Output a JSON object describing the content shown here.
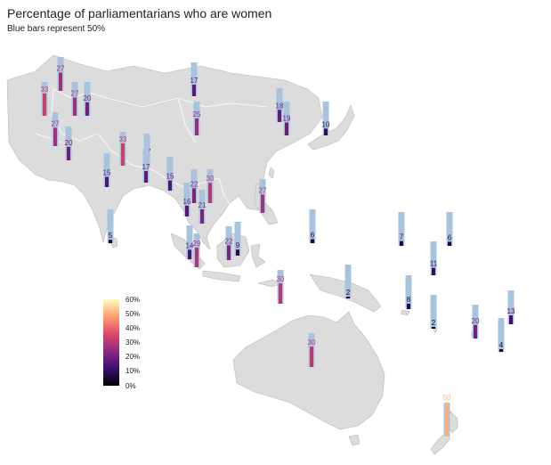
{
  "title": "Percentage of parliamentarians who are women",
  "subtitle": "Blue bars represent 50%",
  "reference_value": 50,
  "colors": {
    "reference_bar": "#a8c3dd",
    "land": "#dcdcdc",
    "scale": [
      "#000004",
      "#3b0f70",
      "#8c2981",
      "#de4968",
      "#fe9f6d",
      "#fcfdbf"
    ]
  },
  "legend": {
    "ticks": [
      "60%",
      "50%",
      "40%",
      "30%",
      "20%",
      "10%",
      "0%"
    ],
    "max": 60
  },
  "chart_data": {
    "type": "bar",
    "title": "Percentage of parliamentarians who are women",
    "subtitle": "Blue bars represent 50%",
    "values": [
      27,
      33,
      27,
      20,
      17,
      27,
      20,
      25,
      18,
      19,
      10,
      17,
      33,
      15,
      17,
      15,
      22,
      30,
      16,
      21,
      27,
      5,
      14,
      6,
      7,
      6,
      29,
      22,
      9,
      30,
      11,
      2,
      8,
      2,
      20,
      13,
      4,
      30,
      50
    ],
    "ylim": [
      0,
      60
    ]
  }
}
